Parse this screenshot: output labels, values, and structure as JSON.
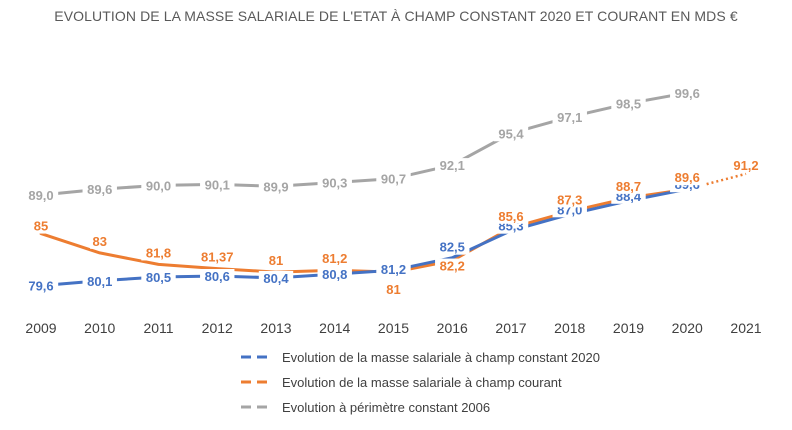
{
  "chart_data": {
    "type": "line",
    "title": "EVOLUTION DE LA MASSE SALARIALE DE L'ETAT À CHAMP CONSTANT 2020 ET COURANT EN MDS €",
    "xlabel": "",
    "ylabel": "",
    "categories": [
      "2009",
      "2010",
      "2011",
      "2012",
      "2013",
      "2014",
      "2015",
      "2016",
      "2017",
      "2018",
      "2019",
      "2020",
      "2021"
    ],
    "ylim": [
      75,
      103
    ],
    "grid": false,
    "legend_position": "bottom",
    "series": [
      {
        "name": "Evolution de la masse salariale à champ constant 2020",
        "color": "#4472C4",
        "values": [
          79.6,
          80.1,
          80.5,
          80.6,
          80.4,
          80.8,
          81.2,
          82.5,
          85.3,
          87.0,
          88.4,
          89.6,
          null
        ],
        "labels": [
          "79,6",
          "80,1",
          "80,5",
          "80,6",
          "80,4",
          "80,8",
          "81,2",
          "82,5",
          "85,3",
          "87,0",
          "88,4",
          "89,6",
          ""
        ]
      },
      {
        "name": "Evolution de la masse salariale à champ courant",
        "color": "#ED7D31",
        "values": [
          85,
          83,
          81.8,
          81.37,
          81,
          81.2,
          81,
          82.2,
          85.6,
          87.3,
          88.7,
          89.6,
          91.2
        ],
        "labels": [
          "85",
          "83",
          "81,8",
          "81,37",
          "81",
          "81,2",
          "81",
          "82,2",
          "85,6",
          "87,3",
          "88,7",
          "89,6",
          "91,2"
        ],
        "dotted_last_segment": true
      },
      {
        "name": "Evolution à périmètre constant 2006",
        "color": "#A5A5A5",
        "values": [
          89.0,
          89.6,
          90.0,
          90.1,
          89.9,
          90.3,
          90.7,
          92.1,
          95.4,
          97.1,
          98.5,
          99.6,
          null
        ],
        "labels": [
          "89,0",
          "89,6",
          "90,0",
          "90,1",
          "89,9",
          "90,3",
          "90,7",
          "92,1",
          "95,4",
          "97,1",
          "98,5",
          "99,6",
          ""
        ]
      }
    ]
  }
}
